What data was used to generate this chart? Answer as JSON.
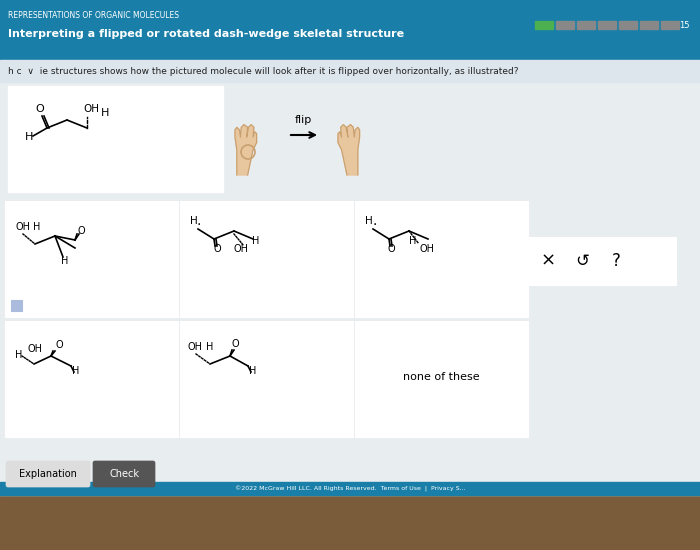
{
  "title_top": "REPRESENTATIONS OF ORGANIC MOLECULES",
  "subtitle": "Interpreting a flipped or rotated dash-wedge skeletal structure",
  "question": "h c  ∨  ie structures shows how the pictured molecule will look after it is flipped over horizontally, as illustrated?",
  "header_color": "#1a7fa8",
  "progress_color": "#4caf50",
  "footer_text": "©2022 McGraw Hill LLC. All Rights Reserved.  Terms of Use  |  Privacy S...",
  "answer_label": "none of these",
  "desk_color": "#7a5c3a",
  "bg_color": "#e8edf0",
  "q_row_color": "#dde6ec",
  "cell_bg": "#ffffff",
  "cell_edge": "#aaaaaa",
  "check_btn_color": "#555555",
  "explain_btn_color": "#dddddd"
}
